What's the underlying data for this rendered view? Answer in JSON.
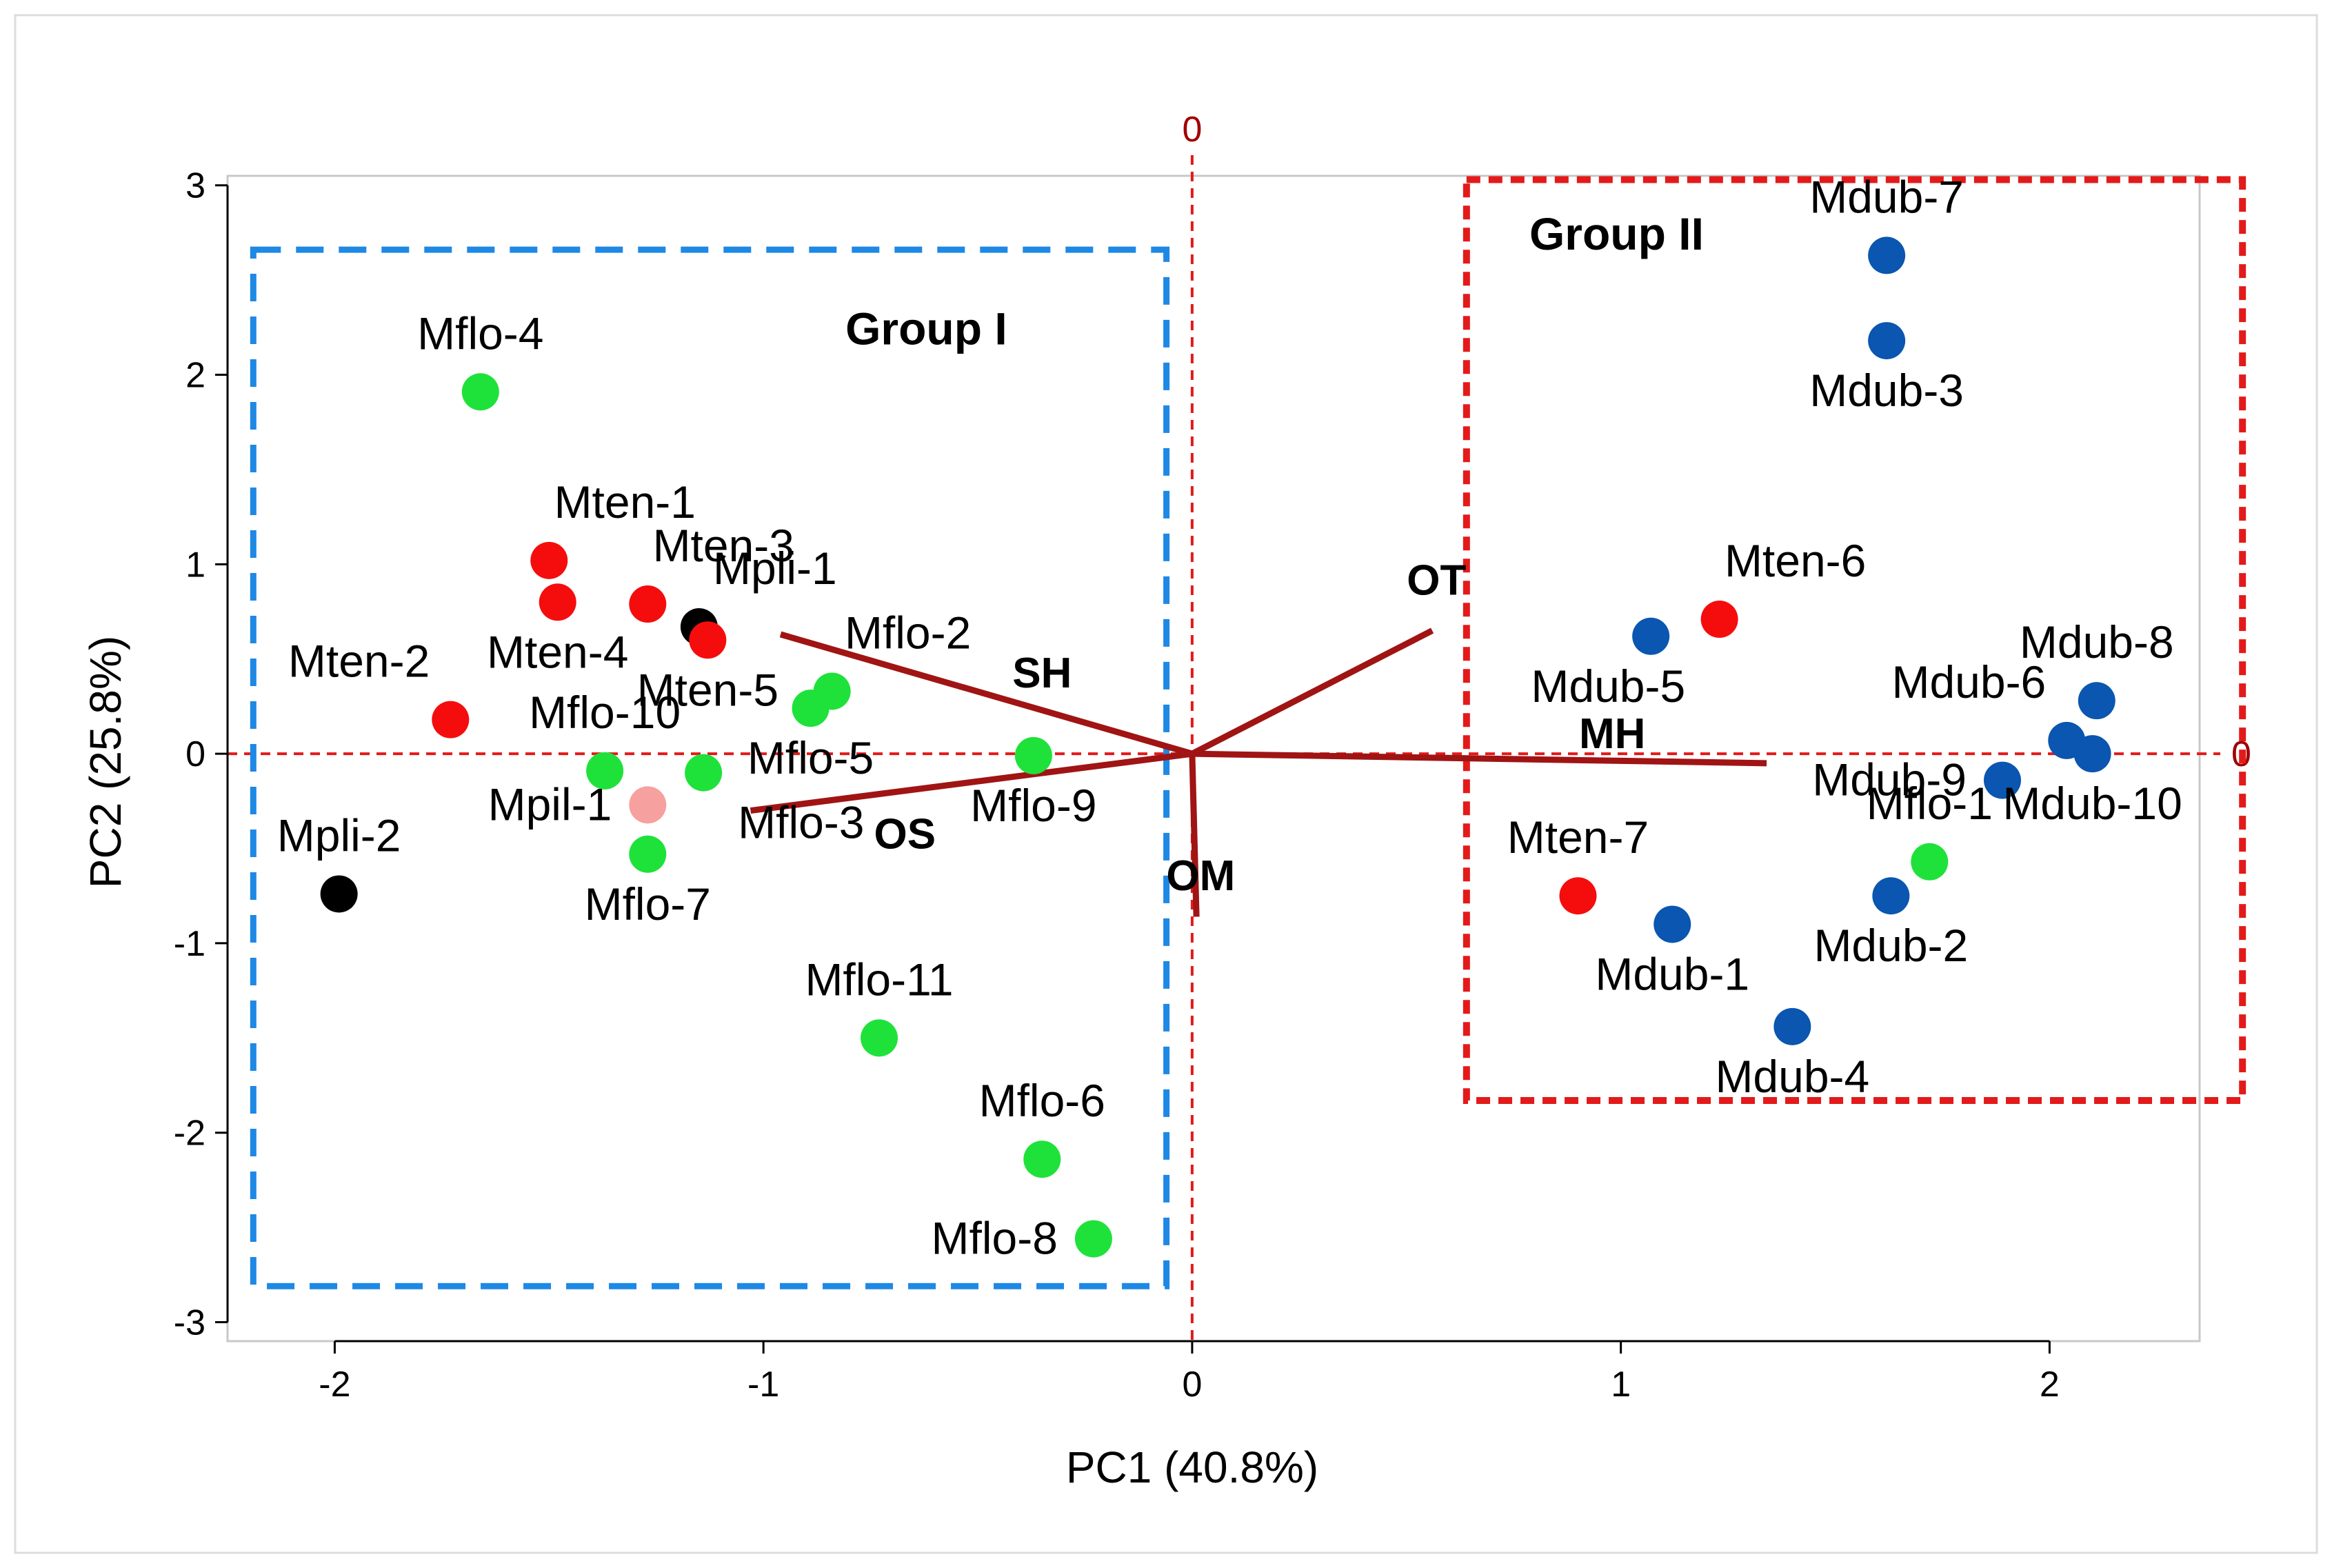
{
  "chart_data": {
    "type": "scatter",
    "subtype": "pca-biplot",
    "xlabel": "PC1  (40.8%)",
    "ylabel": "PC2  (25.8%)",
    "xlim": [
      -2.25,
      2.35
    ],
    "ylim": [
      -3.1,
      3.05
    ],
    "xticks": [
      -2,
      -1,
      0,
      1,
      2
    ],
    "yticks": [
      -3,
      -2,
      -1,
      0,
      1,
      2,
      3
    ],
    "xtick_labels": [
      "-2",
      "-1",
      "0",
      "1",
      "2"
    ],
    "ytick_labels": [
      "-3",
      "-2",
      "-1",
      "0",
      "1",
      "2",
      "3"
    ],
    "reference_lines": {
      "x": 0,
      "y": 0,
      "color": "#e31a1a",
      "x_label": "0",
      "y_label": "0",
      "label_color": "#a00000"
    },
    "colors": {
      "Mflo": "#1ee23a",
      "Mten": "#f50d0d",
      "Mpli": "#000000",
      "Mpil": "#f7a0a0",
      "Mdub": "#0a56b0",
      "vector": "#a01414"
    },
    "points": [
      {
        "label": "Mflo-4",
        "x": -1.66,
        "y": 1.91,
        "group": "Mflo",
        "label_pos": "above"
      },
      {
        "label": "Mten-1",
        "x": -1.5,
        "y": 1.02,
        "group": "Mten",
        "label_pos": "above-right"
      },
      {
        "label": "Mten-4",
        "x": -1.48,
        "y": 0.8,
        "group": "Mten",
        "label_pos": "below"
      },
      {
        "label": "Mten-3",
        "x": -1.27,
        "y": 0.79,
        "group": "Mten",
        "label_pos": "above-right"
      },
      {
        "label": "Mpli-1",
        "x": -1.15,
        "y": 0.67,
        "group": "Mpli",
        "label_pos": "above-right"
      },
      {
        "label": "Mten-5",
        "x": -1.13,
        "y": 0.6,
        "group": "Mten",
        "label_pos": "below"
      },
      {
        "label": "Mten-2",
        "x": -1.73,
        "y": 0.18,
        "group": "Mten",
        "label_pos": "above-left"
      },
      {
        "label": "Mflo-2",
        "x": -0.84,
        "y": 0.33,
        "group": "Mflo",
        "label_pos": "above-right"
      },
      {
        "label": "Mflo-5",
        "x": -0.89,
        "y": 0.24,
        "group": "Mflo",
        "label_pos": "below"
      },
      {
        "label": "Mflo-10",
        "x": -1.37,
        "y": -0.09,
        "group": "Mflo",
        "label_pos": "above"
      },
      {
        "label": "Mflo-3",
        "x": -1.14,
        "y": -0.1,
        "group": "Mflo",
        "label_pos": "below-right"
      },
      {
        "label": "Mpil-1",
        "x": -1.27,
        "y": -0.27,
        "group": "Mpil",
        "label_pos": "left"
      },
      {
        "label": "Mflo-7",
        "x": -1.27,
        "y": -0.53,
        "group": "Mflo",
        "label_pos": "below"
      },
      {
        "label": "Mpli-2",
        "x": -1.99,
        "y": -0.74,
        "group": "Mpli",
        "label_pos": "above"
      },
      {
        "label": "Mflo-9",
        "x": -0.37,
        "y": -0.01,
        "group": "Mflo",
        "label_pos": "below"
      },
      {
        "label": "Mflo-11",
        "x": -0.73,
        "y": -1.5,
        "group": "Mflo",
        "label_pos": "above"
      },
      {
        "label": "Mflo-6",
        "x": -0.35,
        "y": -2.14,
        "group": "Mflo",
        "label_pos": "above"
      },
      {
        "label": "Mflo-8",
        "x": -0.23,
        "y": -2.56,
        "group": "Mflo",
        "label_pos": "left"
      },
      {
        "label": "Mdub-7",
        "x": 1.62,
        "y": 2.63,
        "group": "Mdub",
        "label_pos": "above"
      },
      {
        "label": "Mdub-3",
        "x": 1.62,
        "y": 2.18,
        "group": "Mdub",
        "label_pos": "below"
      },
      {
        "label": "Mten-6",
        "x": 1.23,
        "y": 0.71,
        "group": "Mten",
        "label_pos": "above-right"
      },
      {
        "label": "Mdub-5",
        "x": 1.07,
        "y": 0.62,
        "group": "Mdub",
        "label_pos": "below-left"
      },
      {
        "label": "Mdub-8",
        "x": 2.11,
        "y": 0.28,
        "group": "Mdub",
        "label_pos": "above"
      },
      {
        "label": "Mdub-6",
        "x": 2.04,
        "y": 0.07,
        "group": "Mdub",
        "label_pos": "above-left"
      },
      {
        "label": "Mdub-10",
        "x": 2.1,
        "y": 0.0,
        "group": "Mdub",
        "label_pos": "below"
      },
      {
        "label": "Mdub-9",
        "x": 1.89,
        "y": -0.14,
        "group": "Mdub",
        "label_pos": "left"
      },
      {
        "label": "Mflo-1",
        "x": 1.72,
        "y": -0.57,
        "group": "Mflo",
        "label_pos": "above"
      },
      {
        "label": "Mdub-2",
        "x": 1.63,
        "y": -0.75,
        "group": "Mdub",
        "label_pos": "below"
      },
      {
        "label": "Mten-7",
        "x": 0.9,
        "y": -0.75,
        "group": "Mten",
        "label_pos": "above"
      },
      {
        "label": "Mdub-1",
        "x": 1.12,
        "y": -0.9,
        "group": "Mdub",
        "label_pos": "below"
      },
      {
        "label": "Mdub-4",
        "x": 1.4,
        "y": -1.44,
        "group": "Mdub",
        "label_pos": "below"
      }
    ],
    "vectors": [
      {
        "label": "SH",
        "x": -0.96,
        "y": 0.63,
        "label_x": -0.35,
        "label_y": 0.43
      },
      {
        "label": "OS",
        "x": -1.03,
        "y": -0.3,
        "label_x": -0.67,
        "label_y": -0.42
      },
      {
        "label": "OT",
        "x": 0.56,
        "y": 0.65,
        "label_x": 0.57,
        "label_y": 0.92
      },
      {
        "label": "MH",
        "x": 1.34,
        "y": -0.05,
        "label_x": 0.98,
        "label_y": 0.11
      },
      {
        "label": "OM",
        "x": 0.01,
        "y": -0.86,
        "label_x": 0.02,
        "label_y": -0.64
      }
    ],
    "groups": [
      {
        "label": "Group I",
        "x_range": [
          -2.19,
          -0.06
        ],
        "y_range": [
          -2.81,
          2.66
        ],
        "color": "#1e88e5",
        "label_x": -0.62,
        "label_y": 2.24
      },
      {
        "label": "Group II",
        "x_range": [
          0.64,
          2.45
        ],
        "y_range": [
          -1.83,
          3.03
        ],
        "color": "#e31a1a",
        "label_x": 0.99,
        "label_y": 2.74
      }
    ]
  }
}
